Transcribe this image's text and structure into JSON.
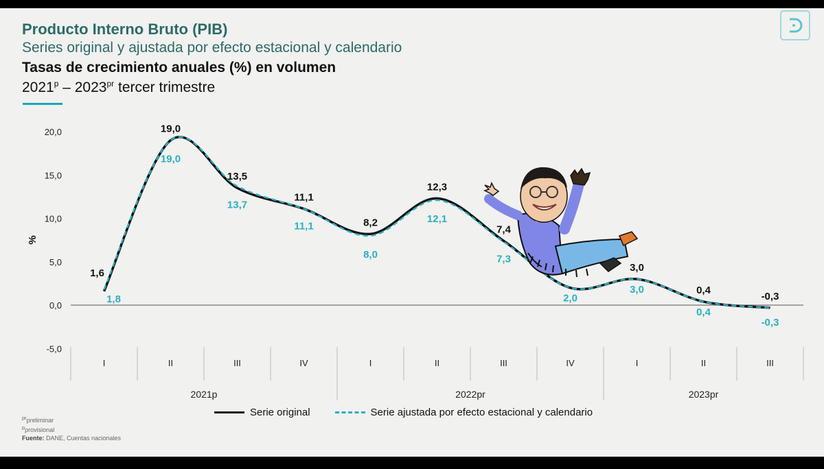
{
  "header": {
    "title": "Producto Interno Bruto (PIB)",
    "subtitle": "Series original y ajustada por efecto estacional y calendario",
    "subtitle2": "Tasas de crecimiento anuales (%) en volumen",
    "period_start": "2021",
    "period_start_sup": "p",
    "period_sep": " – 2023",
    "period_end_sup": "pr",
    "period_suffix": " tercer trimestre"
  },
  "chart_data": {
    "type": "line",
    "ylabel": "%",
    "ylim": [
      -5,
      20
    ],
    "yticks": [
      "20,0",
      "15,0",
      "10,0",
      "5,0",
      "0,0",
      "-5,0"
    ],
    "yticks_values": [
      20,
      15,
      10,
      5,
      0,
      -5
    ],
    "categories": [
      "I",
      "II",
      "III",
      "IV",
      "I",
      "II",
      "III",
      "IV",
      "I",
      "II",
      "III"
    ],
    "years": [
      {
        "label": "2021p",
        "quarters": 4
      },
      {
        "label": "2022pr",
        "quarters": 4
      },
      {
        "label": "2023pr",
        "quarters": 3
      }
    ],
    "series": [
      {
        "name": "Serie original",
        "values": [
          1.6,
          19.0,
          13.5,
          11.1,
          8.2,
          12.3,
          7.4,
          2.0,
          3.0,
          0.4,
          -0.3
        ],
        "labels": [
          "1,6",
          "19,0",
          "13,5",
          "11,1",
          "8,2",
          "12,3",
          "7,4",
          "",
          "3,0",
          "0,4",
          "-0,3"
        ],
        "color": "#111111"
      },
      {
        "name": "Serie ajustada por efecto estacional y calendario",
        "values": [
          1.8,
          19.0,
          13.7,
          11.1,
          8.0,
          12.1,
          7.3,
          2.0,
          3.0,
          0.4,
          -0.3
        ],
        "labels": [
          "1,8",
          "19,0",
          "13,7",
          "11,1",
          "8,0",
          "12,1",
          "7,3",
          "2,0",
          "3,0",
          "0,4",
          "-0,3"
        ],
        "color": "#2bb0c4"
      }
    ],
    "legend_position": "bottom",
    "grid": false
  },
  "legend": {
    "original": "Serie original",
    "adjusted": "Serie ajustada por efecto estacional y calendario"
  },
  "notes": {
    "preliminar": "preliminar",
    "preliminar_sup": "pr",
    "provisional": "provisional",
    "provisional_sup": "p",
    "source_label": "Fuente:",
    "source_text": " DANE, Cuentas nacionales"
  },
  "colors": {
    "brand": "#2c6b68",
    "accent": "#1aa6b7",
    "adjusted_series": "#2bb0c4",
    "original_series": "#111111"
  },
  "icons": {
    "logo": "dane-d-logo-icon",
    "sticker": "cartoon-figure-sticker"
  }
}
